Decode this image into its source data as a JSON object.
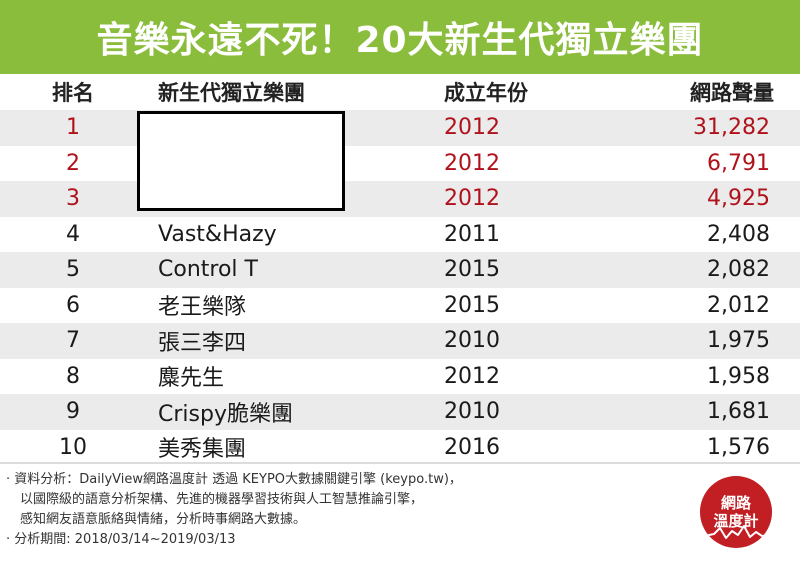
{
  "banner": {
    "title": "音樂永遠不死！20大新生代獨立樂團"
  },
  "table": {
    "headers": {
      "rank": "排名",
      "name": "新生代獨立樂團",
      "year": "成立年份",
      "volume": "網路聲量"
    },
    "rows": [
      {
        "rank": "1",
        "name": "",
        "year": "2012",
        "volume": "31,282"
      },
      {
        "rank": "2",
        "name": "",
        "year": "2012",
        "volume": "6,791"
      },
      {
        "rank": "3",
        "name": "",
        "year": "2012",
        "volume": "4,925"
      },
      {
        "rank": "4",
        "name": "Vast&Hazy",
        "year": "2011",
        "volume": "2,408"
      },
      {
        "rank": "5",
        "name": "Control T",
        "year": "2015",
        "volume": "2,082"
      },
      {
        "rank": "6",
        "name": "老王樂隊",
        "year": "2015",
        "volume": "2,012"
      },
      {
        "rank": "7",
        "name": "張三李四",
        "year": "2010",
        "volume": "1,975"
      },
      {
        "rank": "8",
        "name": "麋先生",
        "year": "2012",
        "volume": "1,958"
      },
      {
        "rank": "9",
        "name": "Crispy脆樂團",
        "year": "2010",
        "volume": "1,681"
      },
      {
        "rank": "10",
        "name": "美秀集團",
        "year": "2016",
        "volume": "1,576"
      }
    ]
  },
  "footer": {
    "line1": "· 資料分析：DailyView網路溫度計 透過 KEYPO大數據關鍵引擎 (keypo.tw)，",
    "line2": "以國際級的語意分析架構、先進的機器學習技術與人工智慧推論引擎，",
    "line3": "感知網友語意脈絡與情緒，分析時事網路大數據。",
    "line4": "· 分析期間: 2018/03/14~2019/03/13"
  },
  "logo": {
    "line1": "網路",
    "line2": "溫度計"
  },
  "colors": {
    "banner": "#8bbd3c",
    "highlight": "#b0121b",
    "logo": "#c11f24",
    "row_shade": "#ebebeb"
  }
}
